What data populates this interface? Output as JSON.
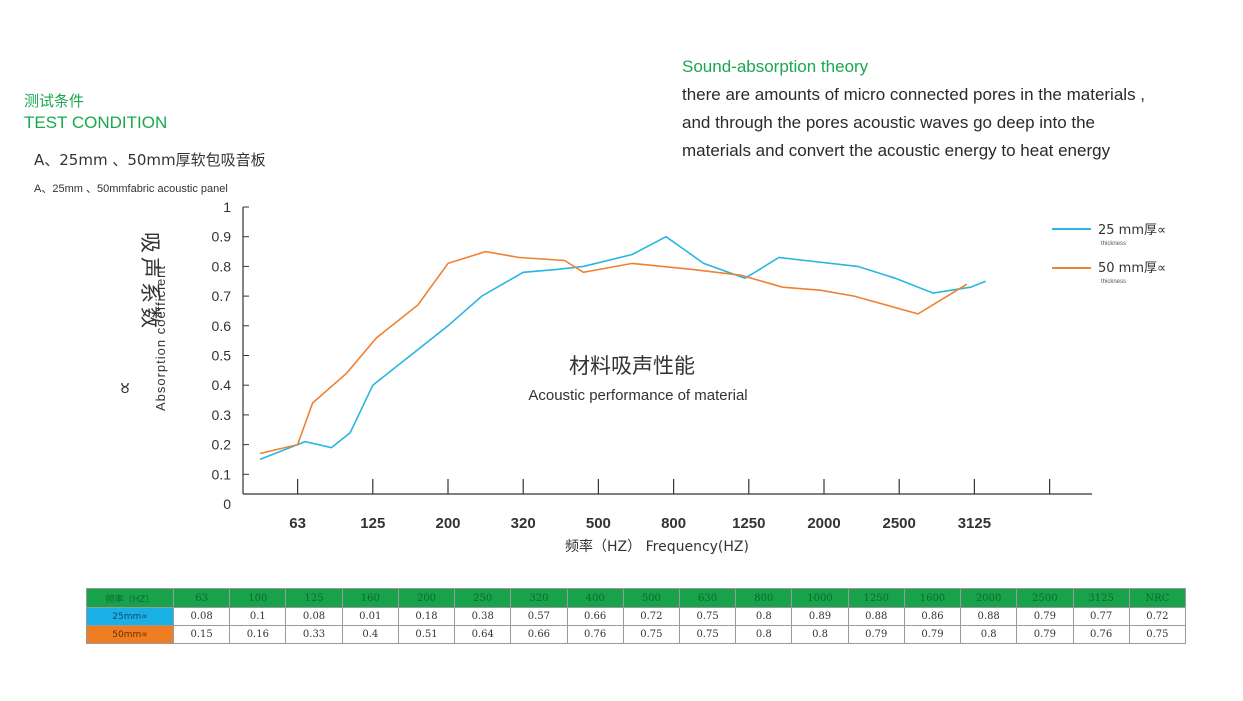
{
  "test_condition": {
    "title_cn": "测试条件",
    "title_en": "TEST CONDITION",
    "material_cn": "A、25mm 、50mm厚软包吸音板",
    "material_en": "A、25mm 、50mmfabric acoustic panel"
  },
  "theory": {
    "title": "Sound-absorption theory",
    "lines": [
      "there are amounts of micro connected pores in the materials ,",
      "and through the pores acoustic waves go deep into the",
      "materials and convert the acoustic energy to heat energy"
    ]
  },
  "colors": {
    "accent_green": "#1aa84e",
    "series_25": "#29b6e0",
    "series_50": "#ee8132",
    "table_header": "#18a24b"
  },
  "chart_data": {
    "type": "line",
    "title": "材料吸声性能",
    "subtitle": "Acoustic performance of material",
    "ylabel_cn": "吸声系数",
    "ylabel_symbol": "∝",
    "ylabel_en": "Absorption coefficient",
    "xlabel": "频率（HZ） Frequency(HZ)",
    "ylim": [
      0,
      1
    ],
    "y_ticks": [
      "0",
      "0.1",
      "0.2",
      "0.3",
      "0.4",
      "0.5",
      "0.6",
      "0.7",
      "0.8",
      "0.9",
      "1"
    ],
    "x_tick_labels": [
      "63",
      "125",
      "200",
      "320",
      "500",
      "800",
      "1250",
      "2000",
      "2500",
      "3125"
    ],
    "x_tick_positions": [
      1,
      3,
      5,
      7,
      9,
      11,
      13,
      15,
      17,
      19
    ],
    "legend_placement": "right",
    "legend": [
      {
        "label": "25 mm厚∝",
        "sub": "thickness"
      },
      {
        "label": "50 mm厚∝",
        "sub": "thickness"
      }
    ],
    "series": [
      {
        "name": "25 mm厚∝",
        "color": "#29b6e0",
        "x": [
          0,
          1,
          1.2,
          1.9,
          2.4,
          3.0,
          4.0,
          5.0,
          5.9,
          7.0,
          7.9,
          8.6,
          9.9,
          10.8,
          11.8,
          12.9,
          13.8,
          14.5,
          15.9,
          16.9,
          17.9,
          18.9,
          19.3
        ],
        "y": [
          0.15,
          0.2,
          0.21,
          0.19,
          0.24,
          0.4,
          0.5,
          0.6,
          0.7,
          0.78,
          0.79,
          0.8,
          0.84,
          0.9,
          0.81,
          0.76,
          0.83,
          0.82,
          0.8,
          0.76,
          0.71,
          0.73,
          0.75
        ]
      },
      {
        "name": "50 mm厚∝",
        "color": "#ee8132",
        "x": [
          0,
          1,
          1.4,
          2.3,
          3.1,
          4.2,
          5.0,
          6.0,
          6.9,
          8.1,
          8.6,
          9.9,
          11.5,
          12.8,
          13.9,
          14.9,
          15.8,
          17.5,
          18.8
        ],
        "y": [
          0.17,
          0.2,
          0.34,
          0.44,
          0.56,
          0.67,
          0.81,
          0.85,
          0.83,
          0.82,
          0.78,
          0.81,
          0.79,
          0.77,
          0.73,
          0.72,
          0.7,
          0.64,
          0.74
        ]
      }
    ]
  },
  "table": {
    "header": [
      "频率（HZ）",
      "63",
      "100",
      "125",
      "160",
      "200",
      "250",
      "320",
      "400",
      "500",
      "630",
      "800",
      "1000",
      "1250",
      "1600",
      "2000",
      "2500",
      "3125",
      "NRC"
    ],
    "rows": [
      {
        "label": "25mm∝",
        "values": [
          "0.08",
          "0.1",
          "0.08",
          "0.01",
          "0.18",
          "0.38",
          "0.57",
          "0.66",
          "0.72",
          "0.75",
          "0.8",
          "0.89",
          "0.88",
          "0.86",
          "0.88",
          "0.79",
          "0.77",
          "0.72"
        ]
      },
      {
        "label": "50mm∝",
        "values": [
          "0.15",
          "0.16",
          "0.33",
          "0.4",
          "0.51",
          "0.64",
          "0.66",
          "0.76",
          "0.75",
          "0.75",
          "0.8",
          "0.8",
          "0.79",
          "0.79",
          "0.8",
          "0.79",
          "0.76",
          "0.75"
        ]
      }
    ]
  }
}
